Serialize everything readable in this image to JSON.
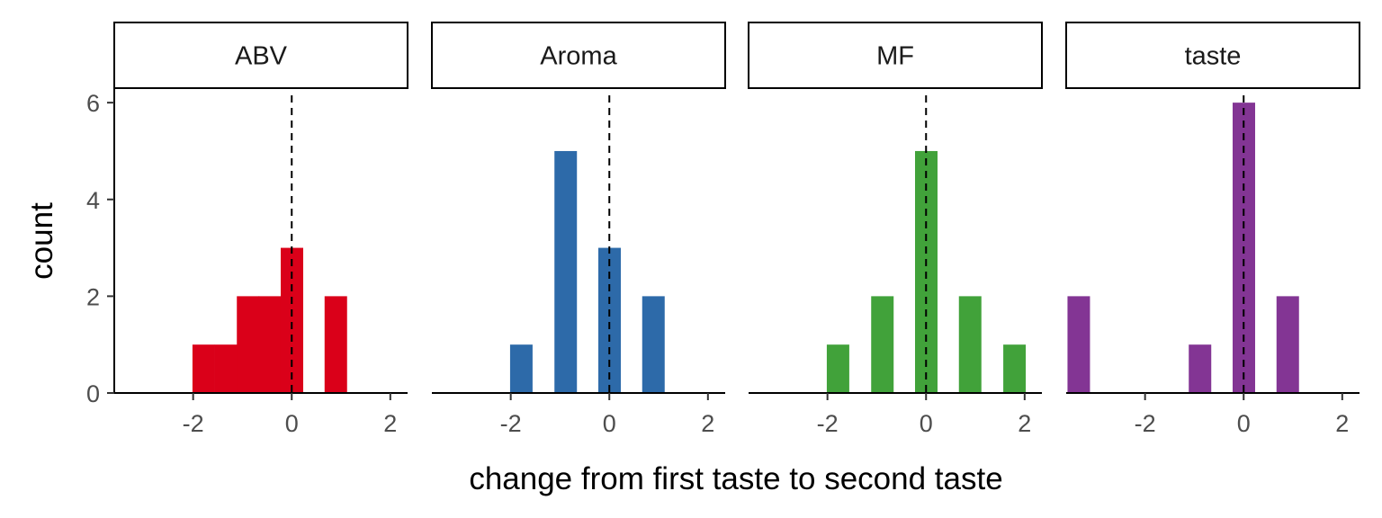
{
  "chart_data": {
    "type": "bar",
    "xlabel": "change from first taste to second taste",
    "ylabel": "count",
    "xlim": [
      -3.6,
      2.35
    ],
    "ylim": [
      0,
      6.3
    ],
    "x_ticks": [
      -2,
      0,
      2
    ],
    "y_ticks": [
      0,
      2,
      4,
      6
    ],
    "reference_line_x": 0,
    "grid": false,
    "legend": "none",
    "panels": [
      {
        "name": "ABV",
        "color": "#DA0019",
        "bars": [
          {
            "x": -1.79,
            "value": 1
          },
          {
            "x": -1.34,
            "value": 1
          },
          {
            "x": -0.89,
            "value": 2
          },
          {
            "x": -0.45,
            "value": 2
          },
          {
            "x": 0.0,
            "value": 3
          },
          {
            "x": 0.89,
            "value": 2
          }
        ]
      },
      {
        "name": "Aroma",
        "color": "#2D6AA9",
        "bars": [
          {
            "x": -1.79,
            "value": 1
          },
          {
            "x": -0.89,
            "value": 5
          },
          {
            "x": 0.0,
            "value": 3
          },
          {
            "x": 0.89,
            "value": 2
          }
        ]
      },
      {
        "name": "MF",
        "color": "#41A23A",
        "bars": [
          {
            "x": -1.79,
            "value": 1
          },
          {
            "x": -0.89,
            "value": 2
          },
          {
            "x": 0.0,
            "value": 5
          },
          {
            "x": 0.89,
            "value": 2
          },
          {
            "x": 1.79,
            "value": 1
          }
        ]
      },
      {
        "name": "taste",
        "color": "#833594",
        "bars": [
          {
            "x": -3.35,
            "value": 2
          },
          {
            "x": -0.89,
            "value": 1
          },
          {
            "x": 0.0,
            "value": 6
          },
          {
            "x": 0.89,
            "value": 2
          }
        ]
      }
    ]
  }
}
